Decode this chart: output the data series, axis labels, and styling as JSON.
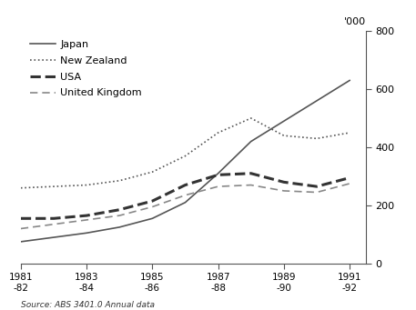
{
  "years": [
    1981,
    1982,
    1983,
    1984,
    1985,
    1986,
    1987,
    1988,
    1989,
    1990,
    1991
  ],
  "year_tick_positions": [
    1981,
    1983,
    1985,
    1987,
    1989,
    1991
  ],
  "year_labels": [
    "1981\n-82",
    "1983\n-84",
    "1985\n-86",
    "1987\n-88",
    "1989\n-90",
    "1991\n-92"
  ],
  "japan": [
    75,
    90,
    105,
    125,
    155,
    210,
    310,
    420,
    490,
    560,
    630
  ],
  "new_zealand": [
    260,
    265,
    270,
    285,
    315,
    370,
    450,
    500,
    440,
    430,
    450
  ],
  "usa": [
    155,
    155,
    165,
    185,
    215,
    270,
    305,
    310,
    280,
    265,
    295
  ],
  "uk": [
    120,
    135,
    150,
    165,
    195,
    235,
    265,
    270,
    250,
    245,
    275
  ],
  "japan_color": "#555555",
  "new_zealand_color": "#555555",
  "usa_color": "#333333",
  "uk_color": "#888888",
  "ylim": [
    0,
    800
  ],
  "yticks": [
    0,
    200,
    400,
    600,
    800
  ],
  "ylabel": "'000",
  "source": "Source: ABS 3401.0 Annual data",
  "legend_labels": [
    "Japan",
    "New Zealand",
    "USA",
    "United Kingdom"
  ],
  "background_color": "#ffffff"
}
